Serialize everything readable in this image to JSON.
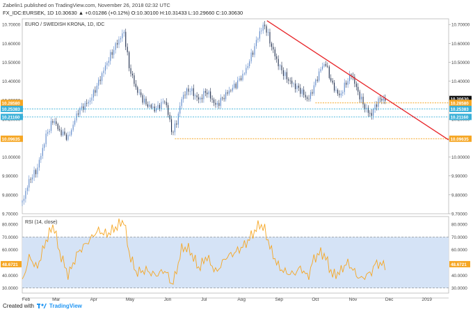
{
  "header": {
    "line1": "Zabelin1 published on TradingView.com, November 26, 2018 02:32 UTC",
    "line2": "FX_IDC:EURSEK, 1D  10.30630  ▲ +0.01286 (+0.12%)  O:10.30100  H:10.31433  L:10.29660  C:10.30630"
  },
  "footer": {
    "created_with": "Created with",
    "brand": "TradingView"
  },
  "colors": {
    "up": "#5b86c8",
    "down": "#1b2a4a",
    "trendline": "#e8262a",
    "orange_level": "#f5a623",
    "cyan_level": "#3ab0d8",
    "rsi_line": "#f5a623",
    "rsi_band": "#d5e3f6",
    "last_price_bg": "#111111"
  },
  "chart_data": [
    {
      "type": "candlestick",
      "title": "EURO / SWEDISH KRONA, 1D, IDC",
      "ylim": [
        9.7,
        10.73
      ],
      "yticks": [
        9.7,
        9.8,
        9.9,
        10.0,
        10.1,
        10.2,
        10.3,
        10.4,
        10.5,
        10.6,
        10.7
      ],
      "ytick_labels": [
        "9.70000",
        "9.80000",
        "9.90000",
        "10.00000",
        "10.10000",
        "10.20000",
        "10.30000",
        "10.40000",
        "10.50000",
        "10.60000",
        "10.70000"
      ],
      "x_months": [
        {
          "label": "Feb",
          "day": 0
        },
        {
          "label": "Mar",
          "day": 28
        },
        {
          "label": "Apr",
          "day": 59
        },
        {
          "label": "May",
          "day": 89
        },
        {
          "label": "Jun",
          "day": 120
        },
        {
          "label": "Jul",
          "day": 150
        },
        {
          "label": "Aug",
          "day": 181
        },
        {
          "label": "Sep",
          "day": 212
        },
        {
          "label": "Oct",
          "day": 242
        },
        {
          "label": "Nov",
          "day": 273
        },
        {
          "label": "Dec",
          "day": 303
        },
        {
          "label": "2019",
          "day": 334
        }
      ],
      "x_range_days": [
        0,
        352
      ],
      "price_anchors": [
        [
          0,
          9.76
        ],
        [
          6,
          9.88
        ],
        [
          12,
          9.93
        ],
        [
          20,
          10.12
        ],
        [
          26,
          10.2
        ],
        [
          30,
          10.14
        ],
        [
          38,
          10.1
        ],
        [
          46,
          10.24
        ],
        [
          56,
          10.3
        ],
        [
          62,
          10.38
        ],
        [
          70,
          10.5
        ],
        [
          78,
          10.6
        ],
        [
          84,
          10.66
        ],
        [
          88,
          10.48
        ],
        [
          94,
          10.36
        ],
        [
          102,
          10.28
        ],
        [
          110,
          10.25
        ],
        [
          118,
          10.3
        ],
        [
          124,
          10.12
        ],
        [
          128,
          10.2
        ],
        [
          132,
          10.32
        ],
        [
          138,
          10.36
        ],
        [
          146,
          10.3
        ],
        [
          152,
          10.35
        ],
        [
          160,
          10.27
        ],
        [
          168,
          10.33
        ],
        [
          176,
          10.38
        ],
        [
          184,
          10.45
        ],
        [
          190,
          10.55
        ],
        [
          196,
          10.66
        ],
        [
          200,
          10.7
        ],
        [
          206,
          10.58
        ],
        [
          212,
          10.48
        ],
        [
          218,
          10.42
        ],
        [
          224,
          10.38
        ],
        [
          230,
          10.35
        ],
        [
          236,
          10.3
        ],
        [
          240,
          10.36
        ],
        [
          246,
          10.46
        ],
        [
          250,
          10.5
        ],
        [
          256,
          10.38
        ],
        [
          262,
          10.32
        ],
        [
          268,
          10.4
        ],
        [
          272,
          10.44
        ],
        [
          276,
          10.36
        ],
        [
          280,
          10.3
        ],
        [
          284,
          10.25
        ],
        [
          288,
          10.22
        ],
        [
          292,
          10.28
        ],
        [
          296,
          10.31
        ],
        [
          300,
          10.3
        ]
      ],
      "trendline": {
        "from": [
          202,
          10.72
        ],
        "to": [
          352,
          10.09
        ]
      },
      "levels": [
        {
          "value": 10.3063,
          "label": "10.30630",
          "kind": "last",
          "from_day": 296
        },
        {
          "value": 10.2858,
          "label": "10.28580",
          "kind": "orange",
          "from_day": 242
        },
        {
          "value": 10.25383,
          "label": "10.25383",
          "kind": "cyan",
          "from_day": 0
        },
        {
          "value": 10.2116,
          "label": "10.21160",
          "kind": "cyan",
          "from_day": 0
        },
        {
          "value": 10.09635,
          "label": "10.09635",
          "kind": "orange",
          "from_day": 126
        }
      ]
    },
    {
      "type": "line",
      "title": "RSI (14, close)",
      "ylim": [
        26,
        86
      ],
      "yticks": [
        30,
        40,
        50,
        60,
        70,
        80
      ],
      "ytick_labels": [
        "30.0000",
        "40.0000",
        "50.0000",
        "60.0000",
        "70.0000",
        "80.0000"
      ],
      "band": [
        30,
        70
      ],
      "current": {
        "value": 48.6721,
        "label": "48.6721"
      },
      "anchors": [
        [
          0,
          35
        ],
        [
          6,
          55
        ],
        [
          12,
          45
        ],
        [
          20,
          68
        ],
        [
          26,
          80
        ],
        [
          30,
          60
        ],
        [
          38,
          40
        ],
        [
          46,
          58
        ],
        [
          56,
          68
        ],
        [
          62,
          75
        ],
        [
          70,
          72
        ],
        [
          78,
          78
        ],
        [
          84,
          83
        ],
        [
          88,
          58
        ],
        [
          94,
          42
        ],
        [
          102,
          44
        ],
        [
          110,
          40
        ],
        [
          118,
          44
        ],
        [
          124,
          32
        ],
        [
          128,
          46
        ],
        [
          132,
          62
        ],
        [
          138,
          60
        ],
        [
          146,
          45
        ],
        [
          152,
          55
        ],
        [
          160,
          42
        ],
        [
          168,
          54
        ],
        [
          176,
          58
        ],
        [
          184,
          64
        ],
        [
          190,
          72
        ],
        [
          196,
          80
        ],
        [
          200,
          76
        ],
        [
          206,
          58
        ],
        [
          212,
          46
        ],
        [
          218,
          42
        ],
        [
          224,
          41
        ],
        [
          230,
          46
        ],
        [
          236,
          38
        ],
        [
          240,
          52
        ],
        [
          246,
          58
        ],
        [
          250,
          55
        ],
        [
          256,
          40
        ],
        [
          262,
          42
        ],
        [
          268,
          50
        ],
        [
          272,
          46
        ],
        [
          276,
          40
        ],
        [
          280,
          37
        ],
        [
          284,
          40
        ],
        [
          288,
          42
        ],
        [
          292,
          50
        ],
        [
          296,
          48
        ],
        [
          300,
          48.67
        ]
      ]
    }
  ]
}
